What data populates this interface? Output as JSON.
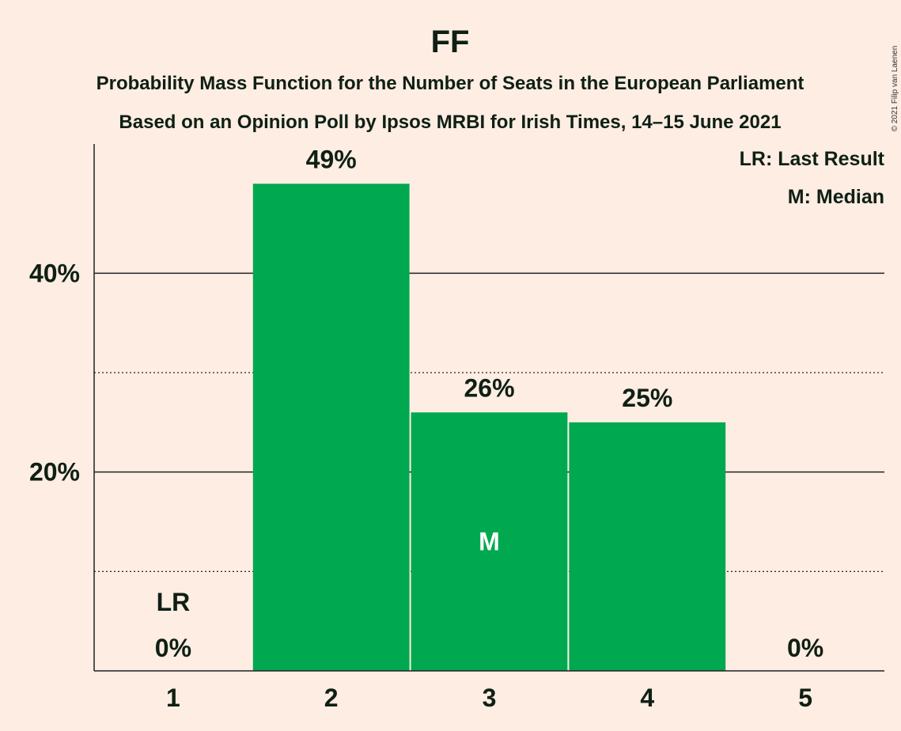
{
  "chart_data": {
    "type": "bar",
    "title": "FF",
    "subtitle_lines": [
      "Probability Mass Function for the Number of Seats in the European Parliament",
      "Based on an Opinion Poll by Ipsos MRBI for Irish Times, 14–15 June 2021"
    ],
    "categories": [
      "1",
      "2",
      "3",
      "4",
      "5"
    ],
    "values": [
      0,
      49,
      26,
      25,
      0
    ],
    "value_labels": [
      "0%",
      "49%",
      "26%",
      "25%",
      "0%"
    ],
    "ylim": [
      0,
      53
    ],
    "y_major_ticks": [
      20,
      40
    ],
    "y_major_tick_labels": [
      "20%",
      "40%"
    ],
    "y_minor_ticks": [
      10,
      30
    ],
    "bar_color": "#00A850",
    "background_color": "#FDEDE3",
    "last_result": {
      "category": "1",
      "label": "LR"
    },
    "median": {
      "category": "3",
      "label": "M"
    },
    "legend": [
      "LR: Last Result",
      "M: Median"
    ],
    "legend_position": "top-right",
    "copyright": "© 2021 Filip van Laenen"
  }
}
